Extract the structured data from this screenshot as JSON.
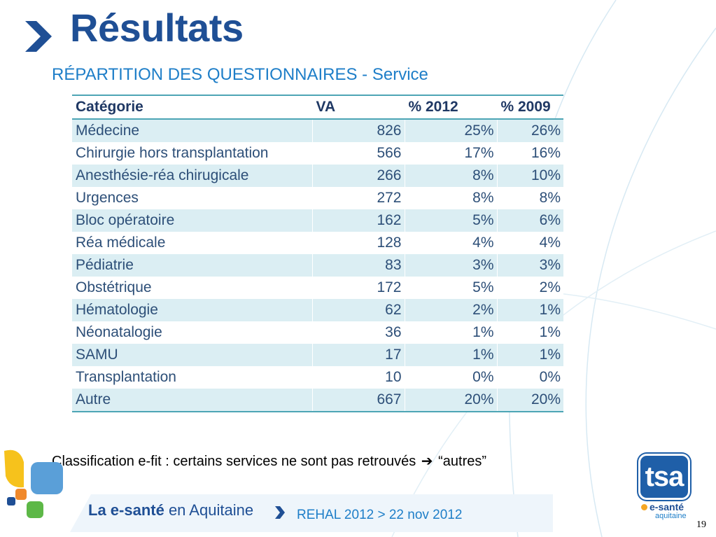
{
  "title": "Résultats",
  "subtitle": "RÉPARTITION DES QUESTIONNAIRES - Service",
  "table": {
    "headers": [
      "Catégorie",
      "VA",
      "% 2012",
      "% 2009"
    ],
    "rows": [
      [
        "Médecine",
        "826",
        "25%",
        "26%"
      ],
      [
        "Chirurgie hors transplantation",
        "566",
        "17%",
        "16%"
      ],
      [
        "Anesthésie-réa chirugicale",
        "266",
        "8%",
        "10%"
      ],
      [
        "Urgences",
        "272",
        "8%",
        "8%"
      ],
      [
        "Bloc opératoire",
        "162",
        "5%",
        "6%"
      ],
      [
        "Réa médicale",
        "128",
        "4%",
        "4%"
      ],
      [
        "Pédiatrie",
        "83",
        "3%",
        "3%"
      ],
      [
        "Obstétrique",
        "172",
        "5%",
        "2%"
      ],
      [
        "Hématologie",
        "62",
        "2%",
        "1%"
      ],
      [
        "Néonatalogie",
        "36",
        "1%",
        "1%"
      ],
      [
        "SAMU",
        "17",
        "1%",
        "1%"
      ],
      [
        "Transplantation",
        "10",
        "0%",
        "0%"
      ],
      [
        "Autre",
        "667",
        "20%",
        "20%"
      ]
    ]
  },
  "note": {
    "text": "Classification e-fit : certains services ne sont pas retrouvés",
    "arrow": "➔",
    "suffix": "“autres”"
  },
  "footer": {
    "brand_bold": "La e-santé",
    "brand_rest": " en Aquitaine",
    "event": "REHAL 2012 > 22 nov 2012"
  },
  "logo": {
    "tsa": "tsa",
    "esante": "e-santé",
    "aquitaine": "aquitaine"
  },
  "page_number": "19",
  "colors": {
    "title": "#1f4f95",
    "subtitle": "#1e7ec8",
    "row_band": "#dbeef3",
    "rule": "#4da5b5"
  }
}
